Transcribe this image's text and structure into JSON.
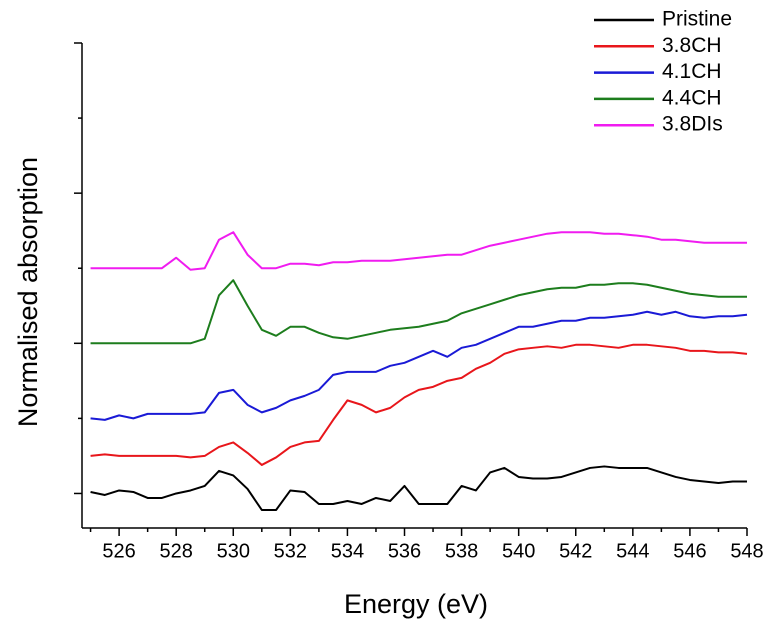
{
  "chart_data": {
    "type": "line",
    "xlabel": "Energy (eV)",
    "ylabel": "Normalised absorption",
    "x": [
      525,
      525.5,
      526,
      526.5,
      527,
      527.5,
      528,
      528.5,
      529,
      529.5,
      530,
      530.5,
      531,
      531.5,
      532,
      532.5,
      533,
      533.5,
      534,
      534.5,
      535,
      535.5,
      536,
      536.5,
      537,
      537.5,
      538,
      538.5,
      539,
      539.5,
      540,
      540.5,
      541,
      541.5,
      542,
      542.5,
      543,
      543.5,
      544,
      544.5,
      545,
      545.5,
      546,
      546.5,
      547,
      547.5,
      548
    ],
    "series": [
      {
        "name": "Pristine",
        "color": "#000000",
        "values": [
          0.01,
          -0.01,
          0.02,
          0.01,
          -0.03,
          -0.03,
          0,
          0.02,
          0.05,
          0.15,
          0.12,
          0.03,
          -0.11,
          -0.11,
          0.02,
          0.01,
          -0.07,
          -0.07,
          -0.05,
          -0.07,
          -0.03,
          -0.05,
          0.05,
          -0.07,
          -0.07,
          -0.07,
          0.05,
          0.02,
          0.14,
          0.17,
          0.11,
          0.1,
          0.1,
          0.11,
          0.14,
          0.17,
          0.18,
          0.17,
          0.17,
          0.17,
          0.14,
          0.11,
          0.09,
          0.08,
          0.07,
          0.08,
          0.08
        ]
      },
      {
        "name": "3.8CH",
        "color": "#e8161b",
        "values": [
          0.25,
          0.26,
          0.25,
          0.25,
          0.25,
          0.25,
          0.25,
          0.24,
          0.25,
          0.31,
          0.34,
          0.27,
          0.19,
          0.24,
          0.31,
          0.34,
          0.35,
          0.49,
          0.62,
          0.59,
          0.54,
          0.57,
          0.64,
          0.69,
          0.71,
          0.75,
          0.77,
          0.83,
          0.87,
          0.93,
          0.96,
          0.97,
          0.98,
          0.97,
          0.99,
          0.99,
          0.98,
          0.97,
          0.99,
          0.99,
          0.98,
          0.97,
          0.95,
          0.95,
          0.94,
          0.94,
          0.93
        ]
      },
      {
        "name": "4.1CH",
        "color": "#1a1ad6",
        "values": [
          0.5,
          0.49,
          0.52,
          0.5,
          0.53,
          0.53,
          0.53,
          0.53,
          0.54,
          0.67,
          0.69,
          0.59,
          0.54,
          0.57,
          0.62,
          0.65,
          0.69,
          0.79,
          0.81,
          0.81,
          0.81,
          0.85,
          0.87,
          0.91,
          0.95,
          0.91,
          0.97,
          0.99,
          1.03,
          1.07,
          1.11,
          1.11,
          1.13,
          1.15,
          1.15,
          1.17,
          1.17,
          1.18,
          1.19,
          1.21,
          1.19,
          1.21,
          1.18,
          1.17,
          1.18,
          1.18,
          1.19
        ]
      },
      {
        "name": "4.4CH",
        "color": "#1d7d1d",
        "values": [
          1,
          1,
          1,
          1,
          1,
          1,
          1,
          1,
          1.03,
          1.32,
          1.42,
          1.25,
          1.09,
          1.05,
          1.11,
          1.11,
          1.07,
          1.04,
          1.03,
          1.05,
          1.07,
          1.09,
          1.1,
          1.11,
          1.13,
          1.15,
          1.2,
          1.23,
          1.26,
          1.29,
          1.32,
          1.34,
          1.36,
          1.37,
          1.37,
          1.39,
          1.39,
          1.4,
          1.4,
          1.39,
          1.37,
          1.35,
          1.33,
          1.32,
          1.31,
          1.31,
          1.31
        ]
      },
      {
        "name": "3.8DIs",
        "color": "#f01cf0",
        "values": [
          1.5,
          1.5,
          1.5,
          1.5,
          1.5,
          1.5,
          1.57,
          1.49,
          1.5,
          1.69,
          1.74,
          1.59,
          1.5,
          1.5,
          1.53,
          1.53,
          1.52,
          1.54,
          1.54,
          1.55,
          1.55,
          1.55,
          1.56,
          1.57,
          1.58,
          1.59,
          1.59,
          1.62,
          1.65,
          1.67,
          1.69,
          1.71,
          1.73,
          1.74,
          1.74,
          1.74,
          1.73,
          1.73,
          1.72,
          1.71,
          1.69,
          1.69,
          1.68,
          1.67,
          1.67,
          1.67,
          1.67
        ]
      }
    ],
    "xlim": [
      524.7,
      548
    ],
    "xticks": [
      526,
      528,
      530,
      532,
      534,
      536,
      538,
      540,
      542,
      544,
      546,
      548
    ],
    "xminorticks": [
      525,
      527,
      529,
      531,
      533,
      535,
      537,
      539,
      541,
      543,
      545,
      547
    ],
    "ylim": [
      -0.23,
      3
    ],
    "yticks": [
      0,
      1,
      2,
      3
    ],
    "yminorticks": [
      0.5,
      1.5,
      2.5
    ],
    "grid": false,
    "legend": "upper right"
  }
}
